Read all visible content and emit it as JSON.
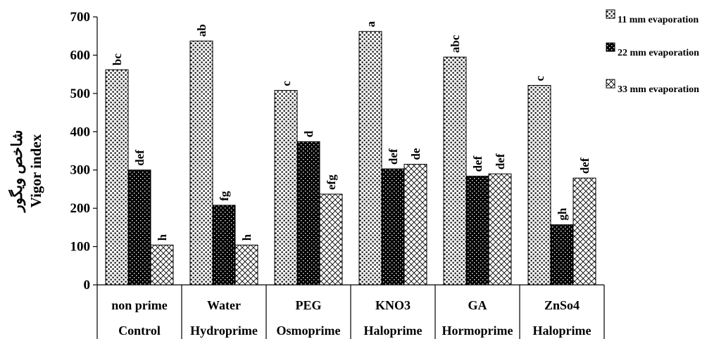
{
  "chart_data": {
    "type": "bar",
    "ylabel_fa": "شاخص ویگور",
    "ylabel": "Vigor index",
    "ylim": [
      0,
      700
    ],
    "yticks": [
      0,
      100,
      200,
      300,
      400,
      500,
      600,
      700
    ],
    "legend_position": "top-right",
    "categories": [
      {
        "line1": "non prime",
        "line2": "Control"
      },
      {
        "line1": "Water",
        "line2": "Hydroprime"
      },
      {
        "line1": "PEG",
        "line2": "Osmoprime"
      },
      {
        "line1": "KNO3",
        "line2": "Haloprime"
      },
      {
        "line1": "GA",
        "line2": "Hormoprime"
      },
      {
        "line1": "ZnSo4",
        "line2": "Haloprime"
      }
    ],
    "series": [
      {
        "name": "11 mm evaporation",
        "pattern": "dots-white",
        "values": [
          562,
          637,
          508,
          662,
          595,
          521
        ],
        "labels": [
          "bc",
          "ab",
          "c",
          "a",
          "abc",
          "c"
        ]
      },
      {
        "name": "22 mm evaporation",
        "pattern": "dots-black",
        "values": [
          300,
          208,
          374,
          303,
          284,
          157
        ],
        "labels": [
          "def",
          "fg",
          "d",
          "def",
          "def",
          "gh"
        ]
      },
      {
        "name": "33 mm evaporation",
        "pattern": "crosshatch",
        "values": [
          104,
          104,
          237,
          315,
          290,
          279
        ],
        "labels": [
          "h",
          "h",
          "efg",
          "de",
          "def",
          "def"
        ]
      }
    ]
  }
}
